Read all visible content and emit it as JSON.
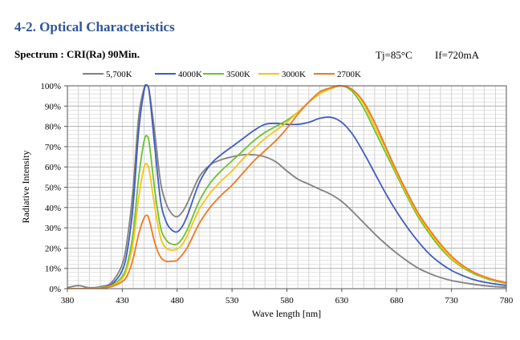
{
  "header": {
    "section_title": "4-2. Optical Characteristics",
    "spectrum_label": "Spectrum : CRI(Ra) 90Min.",
    "condition_tj": "Tj=85°C",
    "condition_if": "If=720mA"
  },
  "chart_data": {
    "type": "line",
    "title": "",
    "xlabel": "Wave length [nm]",
    "ylabel": "Radiative Intensity",
    "xlim": [
      380,
      780
    ],
    "ylim": [
      0,
      100
    ],
    "x_ticks": [
      380,
      430,
      480,
      530,
      580,
      630,
      680,
      730,
      780
    ],
    "x_tick_labels": [
      "380",
      "430",
      "480",
      "530",
      "580",
      "630",
      "680",
      "730",
      "780"
    ],
    "y_ticks": [
      0,
      10,
      20,
      30,
      40,
      50,
      60,
      70,
      80,
      90,
      100
    ],
    "y_tick_labels": [
      "0%",
      "10%",
      "20%",
      "30%",
      "40%",
      "50%",
      "60%",
      "70%",
      "80%",
      "90%",
      "100%"
    ],
    "grid": true,
    "legend_position": "top",
    "x": [
      380,
      390,
      400,
      410,
      420,
      430,
      435,
      440,
      445,
      450,
      453,
      455,
      460,
      465,
      470,
      475,
      480,
      485,
      490,
      500,
      510,
      520,
      530,
      540,
      550,
      560,
      570,
      580,
      590,
      600,
      610,
      620,
      630,
      640,
      650,
      660,
      670,
      680,
      690,
      700,
      710,
      720,
      730,
      740,
      750,
      760,
      770,
      780
    ],
    "series": [
      {
        "name": "5,700K",
        "color": "#808080",
        "values": [
          0.5,
          1.5,
          0.5,
          1.0,
          3.0,
          12,
          26,
          50,
          85,
          99,
          100,
          96,
          75,
          52,
          42,
          37,
          35.5,
          38,
          43,
          55,
          61,
          63.5,
          65,
          66,
          66,
          65,
          62.5,
          58,
          54,
          51.5,
          49,
          46.5,
          43,
          38,
          32.5,
          27,
          22,
          17.5,
          13.5,
          10,
          7.5,
          5.5,
          4,
          3,
          2.2,
          1.5,
          1.0,
          0.7
        ]
      },
      {
        "name": "4000K",
        "color": "#3f5cbc",
        "values": [
          0,
          0,
          0.2,
          0.5,
          2.0,
          9,
          20,
          42,
          78,
          98,
          100,
          95,
          68,
          43,
          33,
          29,
          28,
          31,
          37,
          52,
          61,
          66,
          70,
          74,
          78,
          81,
          81.5,
          81,
          81,
          82,
          84,
          84.5,
          82,
          76,
          67,
          57,
          47,
          38,
          30,
          23,
          17,
          12.5,
          9,
          6.5,
          4.5,
          3.2,
          2.3,
          1.6
        ]
      },
      {
        "name": "3500K",
        "color": "#6ac230",
        "values": [
          0,
          0,
          0.2,
          0.5,
          1.5,
          6,
          13,
          28,
          55,
          73,
          75,
          70,
          47,
          30,
          24,
          22,
          22,
          25,
          30,
          43,
          52,
          58,
          63,
          68,
          73,
          77,
          80,
          83,
          87,
          92,
          96,
          99,
          100,
          97,
          89,
          78,
          67,
          56,
          45,
          35,
          27,
          20,
          14.5,
          10.5,
          7.5,
          5.3,
          3.7,
          2.6
        ]
      },
      {
        "name": "3000K",
        "color": "#f5c518",
        "values": [
          0,
          0,
          0.2,
          0.5,
          1.2,
          5,
          11,
          23,
          45,
          60,
          61,
          57,
          39,
          25,
          20,
          19,
          19.5,
          22,
          27,
          39,
          47,
          53,
          58,
          64,
          69,
          74,
          78,
          82,
          87,
          92,
          96,
          98.5,
          100,
          98,
          91,
          80,
          69,
          57,
          46,
          36,
          28,
          21,
          15,
          11,
          8,
          5.6,
          4,
          2.8
        ]
      },
      {
        "name": "2700K",
        "color": "#f07820",
        "values": [
          0,
          0,
          0.2,
          0.3,
          1.0,
          3.5,
          7,
          15,
          27,
          35,
          36,
          33,
          22,
          15.5,
          13.5,
          13.5,
          14,
          17,
          21,
          32,
          40,
          46,
          51,
          57,
          63,
          68,
          73,
          79,
          86,
          92,
          97,
          99,
          100,
          98,
          92,
          82,
          70,
          58,
          47,
          37,
          29,
          22,
          16,
          11.5,
          8.2,
          5.9,
          4.2,
          3.0
        ]
      }
    ]
  }
}
